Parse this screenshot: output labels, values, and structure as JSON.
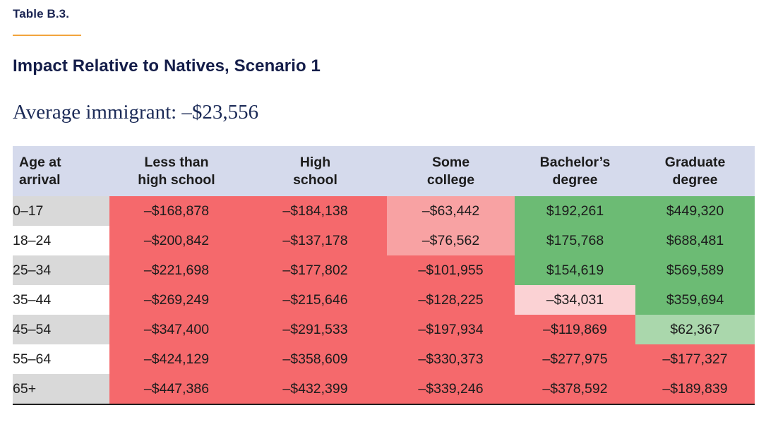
{
  "page": {
    "kicker": "Table B.3.",
    "title": "Impact Relative to Natives, Scenario 1",
    "subtitle": "Average immigrant: –$23,556"
  },
  "colors": {
    "accent_rule": "#f2a43c",
    "header_bg": "#d5daec",
    "age_row_gray": "#d9d9d9",
    "negative_strong": "#f5696c",
    "negative_medium": "#f8a2a3",
    "negative_light": "#fbd2d4",
    "positive_strong": "#6cbb74",
    "positive_light": "#aad7ac",
    "title_navy": "#141d49"
  },
  "table": {
    "header": [
      "Age at\narrival",
      "Less than\nhigh school",
      "High\nschool",
      "Some\ncollege",
      "Bachelor’s\ndegree",
      "Graduate\ndegree"
    ],
    "rows": [
      {
        "age": "0–17",
        "cells": [
          {
            "value": "–$168,878",
            "tone": "red"
          },
          {
            "value": "–$184,138",
            "tone": "red"
          },
          {
            "value": "–$63,442",
            "tone": "pink"
          },
          {
            "value": "$192,261",
            "tone": "green"
          },
          {
            "value": "$449,320",
            "tone": "green"
          }
        ]
      },
      {
        "age": "18–24",
        "cells": [
          {
            "value": "–$200,842",
            "tone": "red"
          },
          {
            "value": "–$137,178",
            "tone": "red"
          },
          {
            "value": "–$76,562",
            "tone": "pink"
          },
          {
            "value": "$175,768",
            "tone": "green"
          },
          {
            "value": "$688,481",
            "tone": "green"
          }
        ]
      },
      {
        "age": "25–34",
        "cells": [
          {
            "value": "–$221,698",
            "tone": "red"
          },
          {
            "value": "–$177,802",
            "tone": "red"
          },
          {
            "value": "–$101,955",
            "tone": "red"
          },
          {
            "value": "$154,619",
            "tone": "green"
          },
          {
            "value": "$569,589",
            "tone": "green"
          }
        ]
      },
      {
        "age": "35–44",
        "cells": [
          {
            "value": "–$269,249",
            "tone": "red"
          },
          {
            "value": "–$215,646",
            "tone": "red"
          },
          {
            "value": "–$128,225",
            "tone": "red"
          },
          {
            "value": "–$34,031",
            "tone": "palepink"
          },
          {
            "value": "$359,694",
            "tone": "green"
          }
        ]
      },
      {
        "age": "45–54",
        "cells": [
          {
            "value": "–$347,400",
            "tone": "red"
          },
          {
            "value": "–$291,533",
            "tone": "red"
          },
          {
            "value": "–$197,934",
            "tone": "red"
          },
          {
            "value": "–$119,869",
            "tone": "red"
          },
          {
            "value": "$62,367",
            "tone": "palegreen"
          }
        ]
      },
      {
        "age": "55–64",
        "cells": [
          {
            "value": "–$424,129",
            "tone": "red"
          },
          {
            "value": "–$358,609",
            "tone": "red"
          },
          {
            "value": "–$330,373",
            "tone": "red"
          },
          {
            "value": "–$277,975",
            "tone": "red"
          },
          {
            "value": "–$177,327",
            "tone": "red"
          }
        ]
      },
      {
        "age": "65+",
        "cells": [
          {
            "value": "–$447,386",
            "tone": "red"
          },
          {
            "value": "–$432,399",
            "tone": "red"
          },
          {
            "value": "–$339,246",
            "tone": "red"
          },
          {
            "value": "–$378,592",
            "tone": "red"
          },
          {
            "value": "–$189,839",
            "tone": "red"
          }
        ]
      }
    ]
  },
  "chart_data": {
    "type": "table",
    "title": "Impact Relative to Natives, Scenario 1",
    "kicker": "Table B.3.",
    "average_immigrant_label": "Average immigrant",
    "average_immigrant_value": -23556,
    "columns": [
      "Less than high school",
      "High school",
      "Some college",
      "Bachelor's degree",
      "Graduate degree"
    ],
    "row_label": "Age at arrival",
    "age_groups": [
      "0–17",
      "18–24",
      "25–34",
      "35–44",
      "45–54",
      "55–64",
      "65+"
    ],
    "values": [
      [
        -168878,
        -184138,
        -63442,
        192261,
        449320
      ],
      [
        -200842,
        -137178,
        -76562,
        175768,
        688481
      ],
      [
        -221698,
        -177802,
        -101955,
        154619,
        569589
      ],
      [
        -269249,
        -215646,
        -128225,
        -34031,
        359694
      ],
      [
        -347400,
        -291533,
        -197934,
        -119869,
        62367
      ],
      [
        -424129,
        -358609,
        -330373,
        -277975,
        -177327
      ],
      [
        -447386,
        -432399,
        -339246,
        -378592,
        -189839
      ]
    ],
    "cell_color_semantics": "red = strongly negative fiscal impact, light pink = mildly negative, green = positive, light green = mildly positive",
    "legend_position": "none",
    "grid": false
  }
}
